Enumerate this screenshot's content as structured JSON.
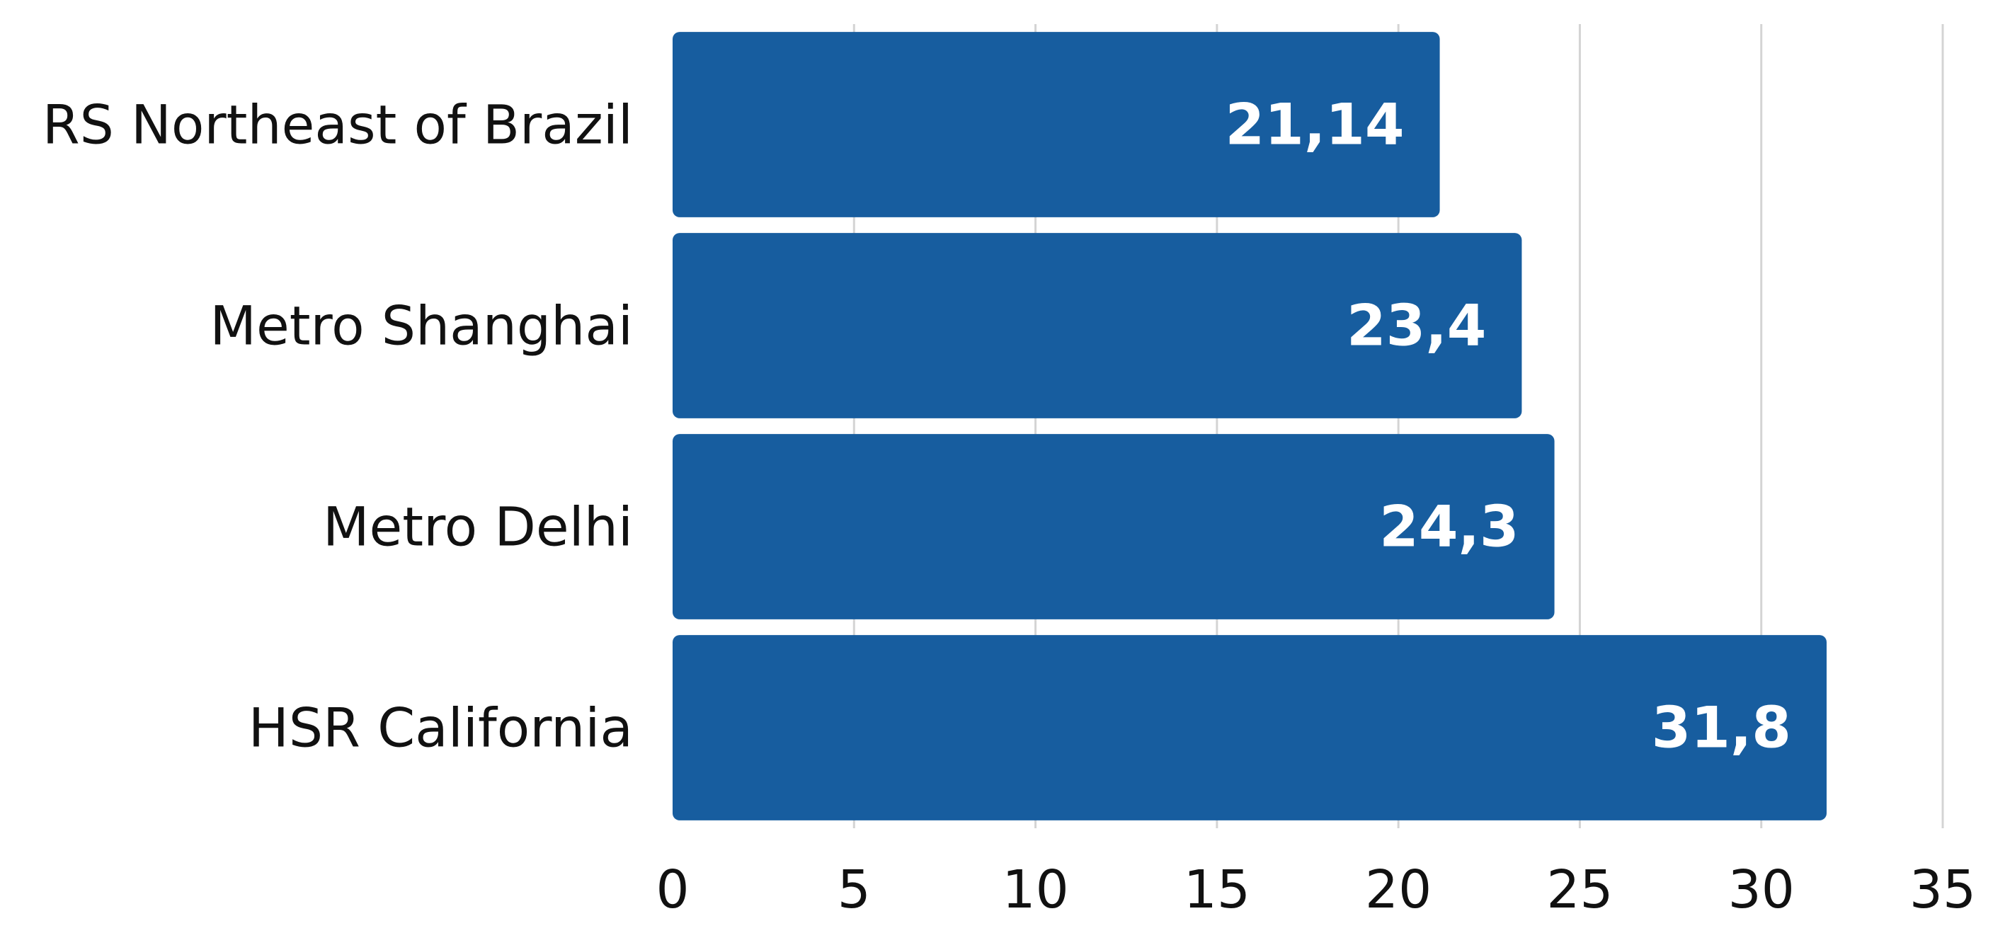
{
  "chart_data": {
    "type": "bar",
    "orientation": "horizontal",
    "categories": [
      "RS Northeast of Brazil",
      "Metro Shanghai",
      "Metro Delhi",
      "HSR California"
    ],
    "values": [
      21.14,
      23.4,
      24.3,
      31.8
    ],
    "data_labels": [
      "21,14",
      "23,4",
      "24,3",
      "31,8"
    ],
    "xlim": [
      0,
      35
    ],
    "x_ticks": [
      0,
      5,
      10,
      15,
      20,
      25,
      30,
      35
    ],
    "x_tick_labels": [
      "0",
      "5",
      "10",
      "15",
      "20",
      "25",
      "30",
      "35"
    ],
    "title": "",
    "xlabel": "",
    "ylabel": "",
    "grid": "vertical",
    "legend": "none",
    "bar_color": "#175d9f",
    "label_color": "#ffffff"
  }
}
